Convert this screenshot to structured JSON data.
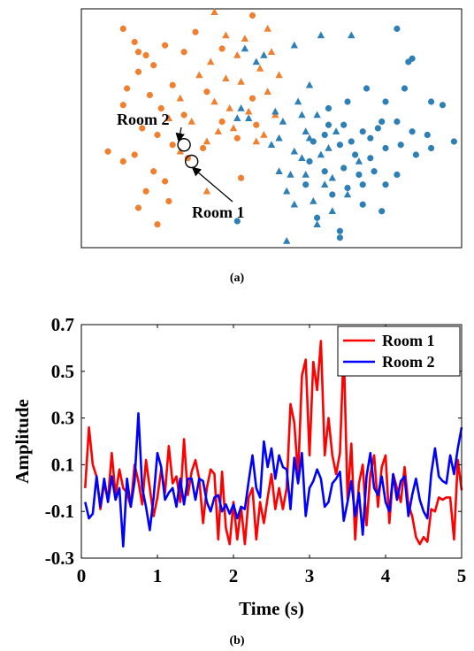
{
  "chart_data": [
    {
      "panel_label": "(a)",
      "type": "scatter",
      "axes": "none",
      "groups": [
        {
          "color": "#F08030",
          "points_circle": [
            [
              -3.9,
              3.4
            ],
            [
              -3.6,
              3.0
            ],
            [
              -3.3,
              2.6
            ],
            [
              -3.5,
              2.1
            ],
            [
              -3.1,
              2.3
            ],
            [
              -3.8,
              1.6
            ],
            [
              -3.2,
              1.4
            ],
            [
              -3.9,
              1.1
            ],
            [
              -2.9,
              1.0
            ],
            [
              -3.4,
              0.4
            ],
            [
              -3.0,
              0.2
            ],
            [
              -2.6,
              -0.1
            ],
            [
              -3.6,
              -0.4
            ],
            [
              -4.3,
              -0.3
            ],
            [
              -3.9,
              -0.6
            ],
            [
              -3.1,
              -0.9
            ],
            [
              -2.8,
              -1.2
            ],
            [
              -3.3,
              -1.5
            ],
            [
              -3.5,
              -2.0
            ],
            [
              -3.0,
              -2.5
            ],
            [
              -2.7,
              -1.8
            ],
            [
              -2.2,
              -0.5
            ],
            [
              -1.8,
              -0.2
            ],
            [
              -1.3,
              0.6
            ],
            [
              -0.9,
              0.1
            ],
            [
              -1.7,
              1.5
            ],
            [
              -0.5,
              1.3
            ],
            [
              -0.4,
              0.5
            ],
            [
              -2.3,
              2.7
            ],
            [
              -2.0,
              3.3
            ],
            [
              -1.3,
              2.8
            ],
            [
              -0.5,
              3.8
            ],
            [
              -2.6,
              1.7
            ],
            [
              -2.3,
              0.8
            ],
            [
              -0.8,
              -1.1
            ],
            [
              -2.8,
              2.9
            ],
            [
              -3.5,
              2.7
            ]
          ],
          "points_triangle": [
            [
              -1.5,
              3.9
            ],
            [
              -1.2,
              3.2
            ],
            [
              -0.9,
              2.6
            ],
            [
              -1.6,
              2.4
            ],
            [
              -1.2,
              1.9
            ],
            [
              -0.8,
              1.8
            ],
            [
              -0.3,
              2.2
            ],
            [
              0.2,
              2.0
            ],
            [
              -1.9,
              2.0
            ],
            [
              -1.5,
              1.2
            ],
            [
              -1.1,
              1.0
            ],
            [
              -0.6,
              0.9
            ],
            [
              -0.1,
              1.5
            ],
            [
              0.1,
              0.8
            ],
            [
              -0.2,
              0.2
            ],
            [
              -1.0,
              0.4
            ],
            [
              -1.4,
              0.3
            ],
            [
              -2.4,
              1.3
            ],
            [
              -2.1,
              0.6
            ],
            [
              -1.7,
              0.0
            ],
            [
              0.0,
              2.7
            ],
            [
              -0.7,
              3.1
            ],
            [
              -1.7,
              -1.5
            ],
            [
              -0.1,
              3.4
            ],
            [
              -0.4,
              0.0
            ],
            [
              -2.7,
              0.7
            ],
            [
              -2.4,
              -0.3
            ]
          ]
        },
        {
          "color": "#2F7FB7",
          "points_circle": [
            [
              3.3,
              3.4
            ],
            [
              3.6,
              2.4
            ],
            [
              3.7,
              2.5
            ],
            [
              3.5,
              1.6
            ],
            [
              3.0,
              1.2
            ],
            [
              2.5,
              1.6
            ],
            [
              2.0,
              1.2
            ],
            [
              1.5,
              1.0
            ],
            [
              1.9,
              0.5
            ],
            [
              2.4,
              0.3
            ],
            [
              2.8,
              0.4
            ],
            [
              3.3,
              0.6
            ],
            [
              3.7,
              0.3
            ],
            [
              4.2,
              1.2
            ],
            [
              4.5,
              1.1
            ],
            [
              4.8,
              0.0
            ],
            [
              4.2,
              -0.2
            ],
            [
              3.8,
              -0.4
            ],
            [
              3.4,
              -0.1
            ],
            [
              3.0,
              -0.2
            ],
            [
              2.6,
              -0.5
            ],
            [
              2.2,
              -0.4
            ],
            [
              1.8,
              -0.1
            ],
            [
              1.4,
              0.2
            ],
            [
              1.1,
              0.0
            ],
            [
              1.0,
              -0.6
            ],
            [
              1.4,
              -0.9
            ],
            [
              1.9,
              -0.8
            ],
            [
              2.3,
              -1.0
            ],
            [
              2.7,
              -0.9
            ],
            [
              3.0,
              -1.3
            ],
            [
              3.3,
              -1.0
            ],
            [
              2.0,
              -1.4
            ],
            [
              1.6,
              -1.6
            ],
            [
              2.4,
              -1.9
            ],
            [
              2.9,
              -2.1
            ],
            [
              1.2,
              -2.3
            ],
            [
              -0.9,
              -2.4
            ],
            [
              1.8,
              -2.7
            ],
            [
              1.8,
              -2.9
            ],
            [
              4.1,
              0.2
            ],
            [
              1.5,
              0.5
            ],
            [
              2.1,
              0.0
            ],
            [
              2.6,
              0.1
            ],
            [
              2.9,
              0.6
            ],
            [
              0.9,
              -1.3
            ],
            [
              2.4,
              -1.3
            ]
          ],
          "points_triangle": [
            [
              -0.7,
              2.8
            ],
            [
              -0.2,
              2.6
            ],
            [
              -0.4,
              2.4
            ],
            [
              0.6,
              2.9
            ],
            [
              1.3,
              3.2
            ],
            [
              2.1,
              3.2
            ],
            [
              0.7,
              1.2
            ],
            [
              0.1,
              0.9
            ],
            [
              0.3,
              0.6
            ],
            [
              0.2,
              0.1
            ],
            [
              0.9,
              0.3
            ],
            [
              1.2,
              0.8
            ],
            [
              0.6,
              -0.3
            ],
            [
              0.9,
              -1.0
            ],
            [
              0.2,
              -0.9
            ],
            [
              0.4,
              -1.5
            ],
            [
              0.6,
              -1.9
            ],
            [
              1.1,
              -1.8
            ],
            [
              1.4,
              -1.3
            ],
            [
              1.2,
              -2.5
            ],
            [
              1.6,
              -2.1
            ],
            [
              1.6,
              -1.1
            ],
            [
              2.0,
              -1.6
            ],
            [
              0.8,
              -0.5
            ],
            [
              1.7,
              0.3
            ],
            [
              2.3,
              -0.6
            ],
            [
              0.0,
              -0.1
            ],
            [
              1.0,
              1.7
            ],
            [
              -0.8,
              1.0
            ],
            [
              -0.9,
              0.7
            ],
            [
              -0.6,
              0.7
            ],
            [
              0.4,
              -3.0
            ],
            [
              1.3,
              -0.4
            ],
            [
              0.8,
              0.8
            ],
            [
              1.5,
              -0.2
            ],
            [
              1.0,
              0.1
            ],
            [
              0.5,
              -1.0
            ]
          ]
        }
      ],
      "annotations": [
        {
          "label": "Room 2",
          "target": [
            -2.3,
            -0.1
          ]
        },
        {
          "label": "Room 1",
          "target": [
            -2.1,
            -0.6
          ]
        }
      ]
    },
    {
      "panel_label": "(b)",
      "type": "line",
      "xlabel": "Time (s)",
      "ylabel": "Amplitude",
      "xlim": [
        0,
        5
      ],
      "ylim": [
        -0.3,
        0.7
      ],
      "xticks": [
        "0",
        "1",
        "2",
        "3",
        "4",
        "5"
      ],
      "yticks": [
        "-0.3",
        "-0.1",
        "0.1",
        "0.3",
        "0.5",
        "0.7"
      ],
      "legend_position": "top-right",
      "x": [
        0.05,
        0.1,
        0.15,
        0.2,
        0.25,
        0.3,
        0.35,
        0.4,
        0.45,
        0.5,
        0.55,
        0.6,
        0.65,
        0.7,
        0.75,
        0.8,
        0.85,
        0.9,
        0.95,
        1.0,
        1.05,
        1.1,
        1.15,
        1.2,
        1.25,
        1.3,
        1.35,
        1.4,
        1.45,
        1.5,
        1.55,
        1.6,
        1.65,
        1.7,
        1.75,
        1.8,
        1.85,
        1.9,
        1.95,
        2.0,
        2.05,
        2.1,
        2.15,
        2.2,
        2.25,
        2.3,
        2.35,
        2.4,
        2.45,
        2.5,
        2.55,
        2.6,
        2.65,
        2.7,
        2.75,
        2.8,
        2.85,
        2.9,
        2.95,
        3.0,
        3.05,
        3.1,
        3.15,
        3.2,
        3.25,
        3.3,
        3.35,
        3.4,
        3.45,
        3.5,
        3.55,
        3.6,
        3.65,
        3.7,
        3.75,
        3.8,
        3.85,
        3.9,
        3.95,
        4.0,
        4.05,
        4.1,
        4.15,
        4.2,
        4.25,
        4.3,
        4.35,
        4.4,
        4.45,
        4.5,
        4.55,
        4.6,
        4.65,
        4.7,
        4.75,
        4.8,
        4.85,
        4.9,
        4.95,
        5.0
      ],
      "series": [
        {
          "name": "Room 1",
          "color": "#FF0000",
          "values": [
            0.0,
            0.26,
            0.1,
            0.05,
            -0.09,
            0.02,
            -0.05,
            0.15,
            -0.03,
            0.08,
            0.0,
            -0.02,
            -0.08,
            0.1,
            0.03,
            -0.07,
            0.12,
            0.0,
            -0.12,
            -0.04,
            0.08,
            -0.02,
            0.18,
            0.02,
            0.05,
            -0.06,
            0.21,
            -0.03,
            0.07,
            0.12,
            0.04,
            -0.15,
            0.0,
            0.08,
            0.06,
            -0.22,
            0.07,
            -0.17,
            -0.24,
            -0.06,
            -0.22,
            -0.08,
            -0.24,
            -0.04,
            0.0,
            -0.22,
            -0.06,
            -0.15,
            -0.04,
            0.06,
            -0.09,
            0.0,
            -0.09,
            0.0,
            0.36,
            0.28,
            0.05,
            0.48,
            0.55,
            0.14,
            0.54,
            0.42,
            0.63,
            0.14,
            0.3,
            0.14,
            0.06,
            0.15,
            0.6,
            -0.05,
            0.19,
            -0.22,
            0.02,
            0.1,
            -0.16,
            0.06,
            0.14,
            -0.08,
            0.09,
            0.14,
            -0.15,
            0.06,
            0.0,
            -0.06,
            0.09,
            -0.07,
            -0.12,
            -0.21,
            -0.24,
            -0.21,
            -0.23,
            -0.09,
            -0.1,
            -0.04,
            -0.05,
            -0.04,
            -0.04,
            -0.22,
            0.12,
            -0.01
          ]
        },
        {
          "name": "Room 2",
          "color": "#0000FF",
          "values": [
            -0.06,
            -0.13,
            -0.11,
            0.05,
            -0.08,
            0.04,
            -0.06,
            0.05,
            -0.05,
            0.0,
            -0.25,
            0.04,
            -0.08,
            0.03,
            0.32,
            0.0,
            -0.08,
            -0.18,
            -0.04,
            0.15,
            0.09,
            -0.05,
            -0.02,
            0.0,
            -0.08,
            0.04,
            -0.07,
            0.04,
            0.04,
            -0.05,
            0.04,
            0.03,
            -0.06,
            -0.1,
            -0.04,
            -0.03,
            -0.1,
            -0.07,
            -0.11,
            -0.07,
            -0.13,
            -0.08,
            -0.09,
            0.03,
            0.14,
            0.0,
            -0.04,
            0.2,
            0.09,
            0.17,
            0.04,
            0.14,
            0.09,
            0.08,
            -0.09,
            0.13,
            0.02,
            0.15,
            -0.12,
            0.0,
            0.03,
            0.08,
            0.04,
            -0.08,
            -0.06,
            0.02,
            0.04,
            0.07,
            -0.14,
            -0.06,
            0.03,
            -0.12,
            -0.02,
            -0.2,
            0.05,
            0.15,
            0.0,
            -0.03,
            0.05,
            -0.06,
            -0.1,
            0.06,
            -0.05,
            0.03,
            0.05,
            -0.12,
            -0.03,
            0.04,
            -0.05,
            -0.1,
            -0.13,
            0.06,
            0.17,
            0.05,
            0.03,
            0.02,
            0.14,
            0.06,
            0.17,
            0.26
          ]
        }
      ]
    }
  ]
}
